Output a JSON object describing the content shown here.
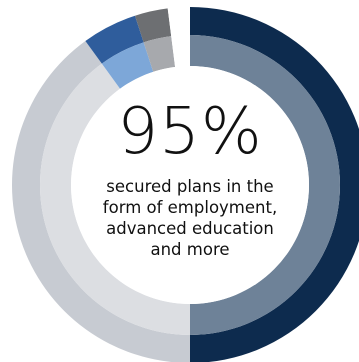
{
  "chart_data": {
    "type": "pie",
    "title": "",
    "outer_ring": [
      {
        "value": 50,
        "color": "#0d2b4e"
      },
      {
        "value": 40,
        "color": "#c7cbd2"
      },
      {
        "value": 5,
        "color": "#2f5d9c"
      },
      {
        "value": 3,
        "color": "#6d6f72"
      },
      {
        "value": 2,
        "color": "#ffffff"
      }
    ],
    "inner_ring": [
      {
        "value": 50,
        "color": "#6e8298"
      },
      {
        "value": 40,
        "color": "#dcdee2"
      },
      {
        "value": 5,
        "color": "#7da7d8"
      },
      {
        "value": 3,
        "color": "#a7a9ad"
      },
      {
        "value": 2,
        "color": "#ffffff"
      }
    ],
    "center_value": "95%",
    "caption_lines": [
      "secured plans in the",
      "form of employment,",
      "advanced education",
      "and more"
    ]
  }
}
